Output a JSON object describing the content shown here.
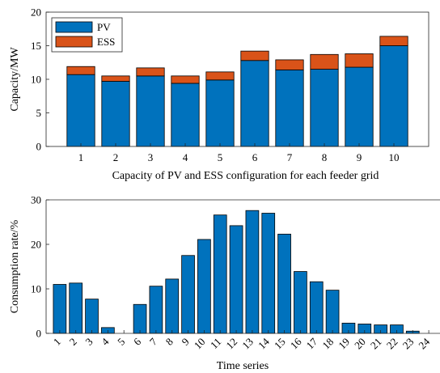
{
  "colors": {
    "pv": "#0072BD",
    "ess": "#D95319",
    "axis": "#262626",
    "bar_edge": "#000000"
  },
  "chart_data": [
    {
      "type": "bar",
      "stacked": true,
      "title": "",
      "categories": [
        "1",
        "2",
        "3",
        "4",
        "5",
        "6",
        "7",
        "8",
        "9",
        "10"
      ],
      "series": [
        {
          "name": "PV",
          "color": "#0072BD",
          "values": [
            10.7,
            9.7,
            10.5,
            9.4,
            9.9,
            12.8,
            11.4,
            11.5,
            11.8,
            15.0
          ]
        },
        {
          "name": "ESS",
          "color": "#D95319",
          "values": [
            1.2,
            0.8,
            1.2,
            1.1,
            1.2,
            1.4,
            1.5,
            2.2,
            2.0,
            1.4
          ]
        }
      ],
      "xlabel": "Capacity of PV and ESS configuration for each feeder grid",
      "ylabel": "Capacity/MW",
      "ylim": [
        0,
        20
      ],
      "yticks": [
        0,
        5,
        10,
        15,
        20
      ],
      "legend_position": "top-left",
      "grid": false
    },
    {
      "type": "bar",
      "title": "",
      "categories": [
        "1",
        "2",
        "3",
        "4",
        "5",
        "6",
        "7",
        "8",
        "9",
        "10",
        "11",
        "12",
        "13",
        "14",
        "15",
        "16",
        "17",
        "18",
        "19",
        "20",
        "21",
        "22",
        "23",
        "24"
      ],
      "series": [
        {
          "color": "#0072BD",
          "values": [
            11.0,
            11.3,
            7.7,
            1.3,
            0,
            6.5,
            10.6,
            12.2,
            17.5,
            21.1,
            26.6,
            24.2,
            27.6,
            27.0,
            22.3,
            13.9,
            11.6,
            9.7,
            2.3,
            2.1,
            1.9,
            1.9,
            0.5,
            0
          ]
        }
      ],
      "xlabel": "Time series",
      "ylabel": "Consumption rate/%",
      "ylim": [
        0,
        30
      ],
      "yticks": [
        0,
        10,
        20,
        30
      ],
      "xtick_rotation": "rotated",
      "grid": false
    }
  ]
}
